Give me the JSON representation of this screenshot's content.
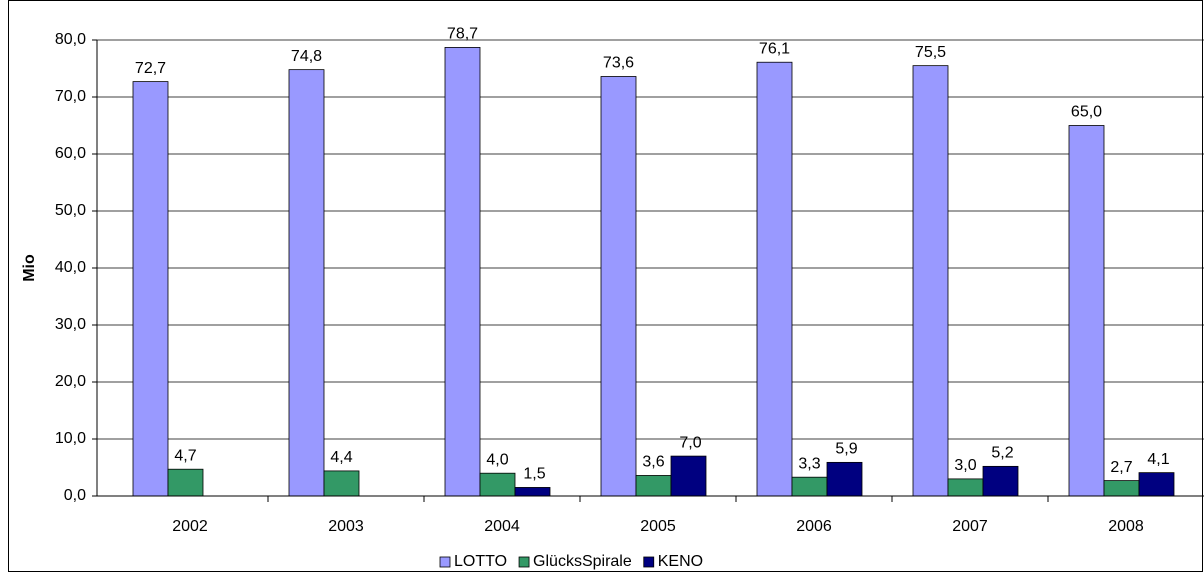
{
  "chart_data": {
    "type": "bar",
    "ylabel": "Mio",
    "categories": [
      "2002",
      "2003",
      "2004",
      "2005",
      "2006",
      "2007",
      "2008"
    ],
    "series": [
      {
        "name": "LOTTO",
        "color": "#9999ff",
        "values": [
          72.7,
          74.8,
          78.7,
          73.6,
          76.1,
          75.5,
          65.0
        ],
        "value_labels": [
          "72,7",
          "74,8",
          "78,7",
          "73,6",
          "76,1",
          "75,5",
          "65,0"
        ]
      },
      {
        "name": "GlücksSpirale",
        "color": "#339966",
        "values": [
          4.7,
          4.4,
          4.0,
          3.6,
          3.3,
          3.0,
          2.7
        ],
        "value_labels": [
          "4,7",
          "4,4",
          "4,0",
          "3,6",
          "3,3",
          "3,0",
          "2,7"
        ]
      },
      {
        "name": "KENO",
        "color": "#000080",
        "values": [
          null,
          null,
          1.5,
          7.0,
          5.9,
          5.2,
          4.1
        ],
        "value_labels": [
          null,
          null,
          "1,5",
          "7,0",
          "5,9",
          "5,2",
          "4,1"
        ]
      }
    ],
    "ylim": [
      0,
      80
    ],
    "yticks": [
      {
        "value": 0,
        "label": "0,0"
      },
      {
        "value": 10,
        "label": "10,0"
      },
      {
        "value": 20,
        "label": "20,0"
      },
      {
        "value": 30,
        "label": "30,0"
      },
      {
        "value": 40,
        "label": "40,0"
      },
      {
        "value": 50,
        "label": "50,0"
      },
      {
        "value": 60,
        "label": "60,0"
      },
      {
        "value": 70,
        "label": "70,0"
      },
      {
        "value": 80,
        "label": "80,0"
      }
    ],
    "grid": true,
    "legend": "bottom"
  }
}
